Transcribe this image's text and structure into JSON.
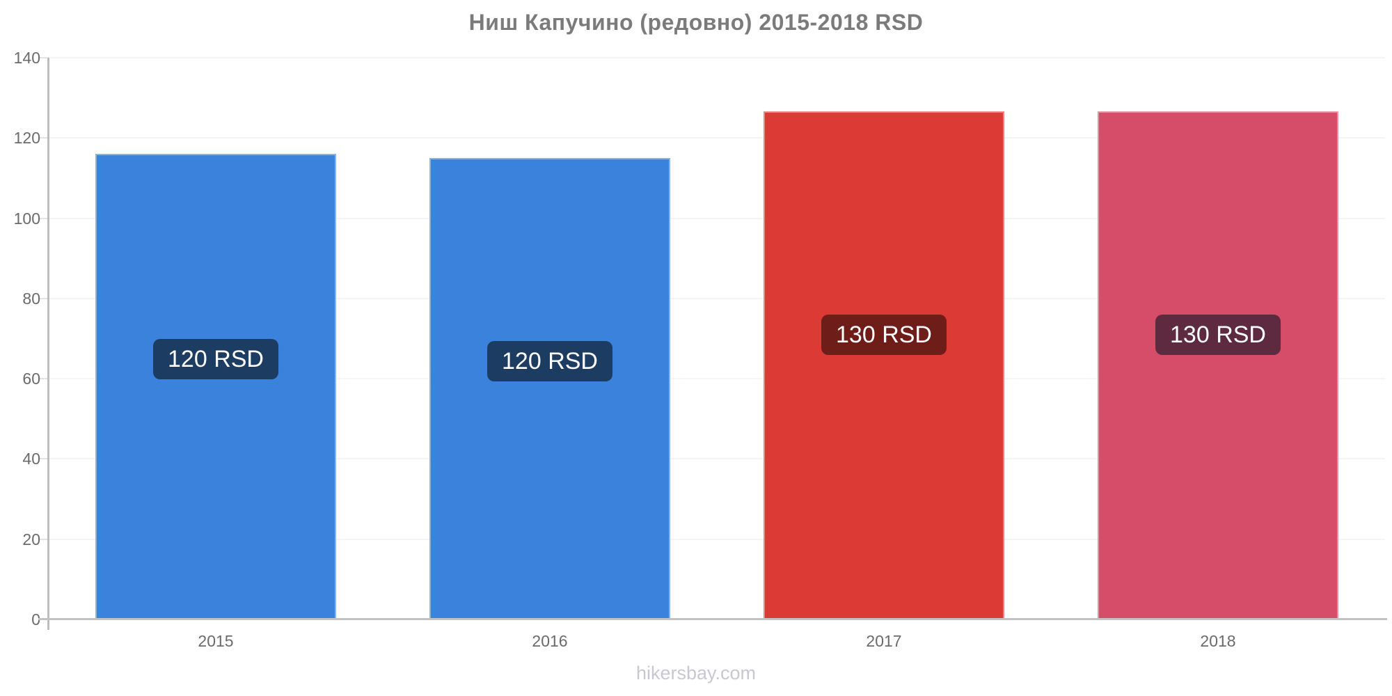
{
  "chart_data": {
    "type": "bar",
    "title": "Ниш Капучино (редовно) 2015-2018 RSD",
    "categories": [
      "2015",
      "2016",
      "2017",
      "2018"
    ],
    "values": [
      116,
      115,
      126.7,
      126.6
    ],
    "bar_labels": [
      "120 RSD",
      "120 RSD",
      "130 RSD",
      "130 RSD"
    ],
    "bar_colors": [
      "#3a82dc",
      "#3a82dc",
      "#dc3a34",
      "#d54d68"
    ],
    "label_bg_colors": [
      "#1d3c62",
      "#1d3c62",
      "#6e1d19",
      "#5e2a40"
    ],
    "label_text_color": "#ffffff",
    "xlabel": "",
    "ylabel": "",
    "ylim": [
      0,
      140
    ],
    "yticks": [
      0,
      20,
      40,
      60,
      80,
      100,
      120,
      140
    ],
    "grid": true,
    "legend": "none"
  },
  "footer": {
    "text": "hikersbay.com"
  }
}
